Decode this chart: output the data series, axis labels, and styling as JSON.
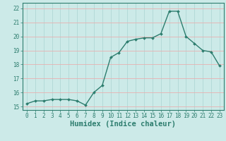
{
  "x": [
    0,
    1,
    2,
    3,
    4,
    5,
    6,
    7,
    8,
    9,
    10,
    11,
    12,
    13,
    14,
    15,
    16,
    17,
    18,
    19,
    20,
    21,
    22,
    23
  ],
  "y": [
    15.2,
    15.4,
    15.4,
    15.5,
    15.5,
    15.5,
    15.4,
    15.1,
    16.0,
    16.5,
    18.5,
    18.85,
    19.65,
    19.8,
    19.9,
    19.9,
    20.2,
    21.8,
    21.8,
    20.0,
    19.5,
    19.0,
    18.9,
    17.9
  ],
  "xlabel": "Humidex (Indice chaleur)",
  "xlim": [
    -0.5,
    23.5
  ],
  "ylim": [
    14.75,
    22.4
  ],
  "yticks": [
    15,
    16,
    17,
    18,
    19,
    20,
    21,
    22
  ],
  "xticks": [
    0,
    1,
    2,
    3,
    4,
    5,
    6,
    7,
    8,
    9,
    10,
    11,
    12,
    13,
    14,
    15,
    16,
    17,
    18,
    19,
    20,
    21,
    22,
    23
  ],
  "line_color": "#2d7d6e",
  "marker": "D",
  "marker_size": 2.0,
  "bg_color": "#cceae8",
  "grid_v_color": "#b0d8d5",
  "grid_h_color": "#e8b0b0",
  "line_width": 1.0,
  "tick_label_fontsize": 5.5,
  "xlabel_fontsize": 7.5
}
